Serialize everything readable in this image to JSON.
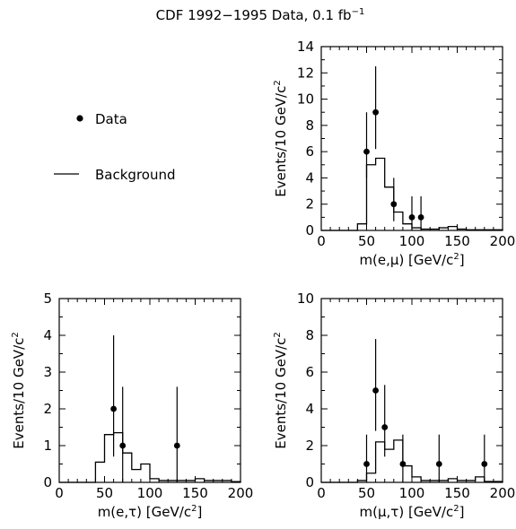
{
  "figure": {
    "title": "CDF 1992−1995 Data, 0.1 fb",
    "title_sup": "−1"
  },
  "legend": {
    "data_label": "Data",
    "background_label": "Background"
  },
  "chart_data": [
    {
      "id": "emu",
      "type": "histogram",
      "xlabel": "m(e,μ) [GeV/c",
      "xlabel_suffix": "]",
      "ylabel": "Events/10 GeV/c",
      "xlim": [
        0,
        200
      ],
      "ylim": [
        0,
        14
      ],
      "xticks": [
        0,
        50,
        100,
        150,
        200
      ],
      "yticks": [
        0,
        2,
        4,
        6,
        8,
        10,
        12,
        14
      ],
      "bin_width": 10,
      "background": {
        "name": "Background",
        "bin_edges": [
          0,
          10,
          20,
          30,
          40,
          50,
          60,
          70,
          80,
          90,
          100,
          110,
          120,
          130,
          140,
          150,
          160,
          170,
          180,
          190,
          200
        ],
        "values": [
          0,
          0,
          0,
          0,
          0.5,
          5.0,
          5.5,
          3.3,
          1.4,
          0.5,
          0.2,
          0.1,
          0.1,
          0.2,
          0.3,
          0.1,
          0.05,
          0.05,
          0.05,
          0.05
        ]
      },
      "data": {
        "name": "Data",
        "x": [
          50,
          60,
          80,
          100,
          110
        ],
        "y": [
          6,
          9,
          2,
          1,
          1
        ],
        "err_low": [
          2.0,
          2.8,
          1.3,
          1.0,
          1.0
        ],
        "err_high": [
          3.0,
          3.5,
          2.0,
          1.6,
          1.6
        ]
      }
    },
    {
      "id": "etau",
      "type": "histogram",
      "xlabel": "m(e,τ) [GeV/c",
      "xlabel_suffix": "]",
      "ylabel": "Events/10 GeV/c",
      "xlim": [
        0,
        200
      ],
      "ylim": [
        0,
        5
      ],
      "xticks": [
        0,
        50,
        100,
        150,
        200
      ],
      "yticks": [
        0,
        1,
        2,
        3,
        4,
        5
      ],
      "bin_width": 10,
      "background": {
        "name": "Background",
        "bin_edges": [
          0,
          10,
          20,
          30,
          40,
          50,
          60,
          70,
          80,
          90,
          100,
          110,
          120,
          130,
          140,
          150,
          160,
          170,
          180,
          190,
          200
        ],
        "values": [
          0,
          0,
          0,
          0,
          0.55,
          1.3,
          1.35,
          0.8,
          0.35,
          0.5,
          0.1,
          0.05,
          0.05,
          0.05,
          0.05,
          0.1,
          0.05,
          0.05,
          0.05,
          0.02
        ]
      },
      "data": {
        "name": "Data",
        "x": [
          60,
          70,
          130
        ],
        "y": [
          2,
          1,
          1
        ],
        "err_low": [
          1.3,
          1.0,
          1.0
        ],
        "err_high": [
          2.0,
          1.6,
          1.6
        ]
      }
    },
    {
      "id": "mutau",
      "type": "histogram",
      "xlabel": "m(μ,τ) [GeV/c",
      "xlabel_suffix": "]",
      "ylabel": "Events/10 GeV/c",
      "xlim": [
        0,
        200
      ],
      "ylim": [
        0,
        10
      ],
      "xticks": [
        0,
        50,
        100,
        150,
        200
      ],
      "yticks": [
        0,
        2,
        4,
        6,
        8,
        10
      ],
      "bin_width": 10,
      "background": {
        "name": "Background",
        "bin_edges": [
          0,
          10,
          20,
          30,
          40,
          50,
          60,
          70,
          80,
          90,
          100,
          110,
          120,
          130,
          140,
          150,
          160,
          170,
          180,
          190,
          200
        ],
        "values": [
          0,
          0,
          0,
          0,
          0.1,
          0.5,
          2.2,
          1.8,
          2.3,
          0.9,
          0.3,
          0.1,
          0.1,
          0.1,
          0.2,
          0.1,
          0.1,
          0.3,
          0.05,
          0.05
        ]
      },
      "data": {
        "name": "Data",
        "x": [
          50,
          60,
          70,
          90,
          130,
          180
        ],
        "y": [
          1,
          5,
          3,
          1,
          1,
          1
        ],
        "err_low": [
          1.0,
          2.2,
          1.6,
          1.0,
          1.0,
          1.0
        ],
        "err_high": [
          1.6,
          2.8,
          2.3,
          1.6,
          1.6,
          1.6
        ]
      }
    }
  ]
}
